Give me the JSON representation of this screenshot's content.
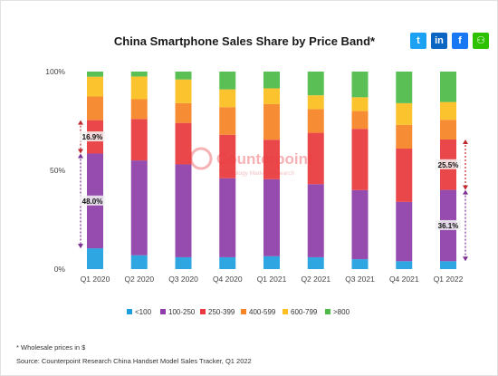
{
  "header": {
    "title": "China Smartphone Sales Share by Price Band*"
  },
  "social": [
    {
      "icon": "twitter-icon",
      "glyph": "t",
      "color": "#1da1f2"
    },
    {
      "icon": "linkedin-icon",
      "glyph": "in",
      "color": "#0a66c2"
    },
    {
      "icon": "facebook-icon",
      "glyph": "f",
      "color": "#1877f2"
    },
    {
      "icon": "wechat-icon",
      "glyph": "⚇",
      "color": "#2dc100"
    }
  ],
  "watermark": {
    "brand": "Counterpoint",
    "tagline": "Technology Market Research"
  },
  "footnotes": {
    "note": "* Wholesale prices in $",
    "source": "Source: Counterpoint Research China Handset Model Sales Tracker, Q1 2022"
  },
  "chart_data": {
    "type": "bar",
    "stacked": true,
    "categories": [
      "Q1 2020",
      "Q2 2020",
      "Q3 2020",
      "Q4 2020",
      "Q1 2021",
      "Q2 2021",
      "Q3 2021",
      "Q4 2021",
      "Q1 2022"
    ],
    "y_ticks": [
      "0%",
      "50%",
      "100%"
    ],
    "ylim": [
      0,
      100
    ],
    "series": [
      {
        "name": "<100",
        "color": "#1e9fe0",
        "values": [
          10.5,
          7.0,
          6.0,
          6.0,
          6.5,
          6.0,
          5.0,
          4.0,
          4.0
        ]
      },
      {
        "name": "100-250",
        "color": "#8e3ea8",
        "values": [
          48.0,
          48.0,
          47.0,
          40.0,
          39.0,
          37.0,
          35.0,
          30.0,
          36.1
        ]
      },
      {
        "name": "250-399",
        "color": "#e8393c",
        "values": [
          16.9,
          21.0,
          21.0,
          22.0,
          20.0,
          26.0,
          31.0,
          27.0,
          25.5
        ]
      },
      {
        "name": "400-599",
        "color": "#f58426",
        "values": [
          12.0,
          10.0,
          10.0,
          14.0,
          18.0,
          12.0,
          9.0,
          12.0,
          10.0
        ]
      },
      {
        "name": "600-799",
        "color": "#fbbf1f",
        "values": [
          10.0,
          11.5,
          12.0,
          9.0,
          8.0,
          7.0,
          7.0,
          11.0,
          9.0
        ]
      },
      {
        "name": ">800",
        "color": "#4dbb48",
        "values": [
          2.6,
          2.5,
          4.0,
          9.0,
          8.5,
          12.0,
          13.0,
          16.0,
          15.4
        ]
      }
    ],
    "annotations": [
      {
        "category": "Q1 2020",
        "series": "250-399",
        "label": "16.9%"
      },
      {
        "category": "Q1 2020",
        "series": "100-250",
        "label": "48.0%"
      },
      {
        "category": "Q1 2022",
        "series": "250-399",
        "label": "25.5%"
      },
      {
        "category": "Q1 2022",
        "series": "100-250",
        "label": "36.1%"
      }
    ],
    "legend_position": "bottom",
    "grid": false
  }
}
